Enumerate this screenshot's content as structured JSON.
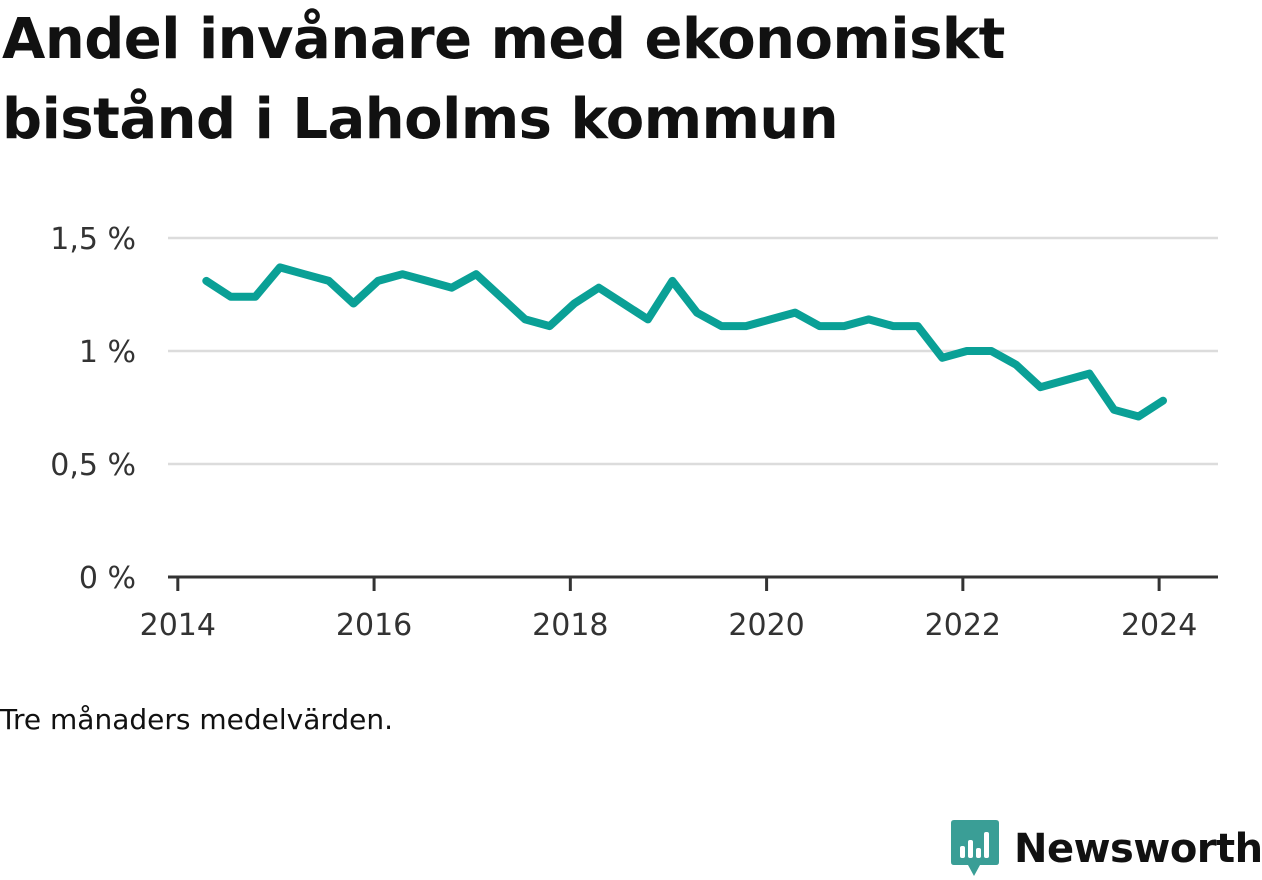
{
  "title": "Andel invånare med ekonomiskt bistånd i Laholms kommun",
  "note": "Tre månaders medelvärden.",
  "brand": {
    "name": "Newsworthy",
    "icon": "newsworthy-logo-icon",
    "color": "#3a9e96"
  },
  "colors": {
    "line": "#0aa096",
    "grid": "#dcdcdc",
    "axis": "#333333"
  },
  "chart_data": {
    "type": "line",
    "title": "Andel invånare med ekonomiskt bistånd i Laholms kommun",
    "xlabel": "",
    "ylabel": "",
    "x_ticks": [
      2014,
      2016,
      2018,
      2020,
      2022,
      2024
    ],
    "x_tick_labels": [
      "2014",
      "2016",
      "2018",
      "2020",
      "2022",
      "2024"
    ],
    "y_ticks": [
      0,
      0.5,
      1,
      1.5
    ],
    "y_tick_labels": [
      "0 %",
      "0,5 %",
      "1 %",
      "1,5 %"
    ],
    "xlim": [
      2013.9,
      2024.6
    ],
    "ylim": [
      0,
      1.5
    ],
    "grid": true,
    "x": [
      2014.29,
      2014.54,
      2014.79,
      2015.04,
      2015.29,
      2015.54,
      2015.79,
      2016.04,
      2016.29,
      2016.54,
      2016.79,
      2017.04,
      2017.29,
      2017.54,
      2017.79,
      2018.04,
      2018.29,
      2018.54,
      2018.79,
      2019.04,
      2019.29,
      2019.54,
      2019.79,
      2020.04,
      2020.29,
      2020.54,
      2020.79,
      2021.04,
      2021.29,
      2021.54,
      2021.79,
      2022.04,
      2022.29,
      2022.54,
      2022.79,
      2023.04,
      2023.29,
      2023.54,
      2023.79,
      2024.04
    ],
    "values": [
      1.31,
      1.24,
      1.24,
      1.37,
      1.34,
      1.31,
      1.21,
      1.31,
      1.34,
      1.31,
      1.28,
      1.34,
      1.24,
      1.14,
      1.11,
      1.21,
      1.28,
      1.21,
      1.14,
      1.31,
      1.17,
      1.11,
      1.11,
      1.14,
      1.17,
      1.11,
      1.11,
      1.14,
      1.11,
      1.11,
      0.97,
      1.0,
      1.0,
      0.94,
      0.84,
      0.87,
      0.9,
      0.74,
      0.71,
      0.78
    ]
  }
}
